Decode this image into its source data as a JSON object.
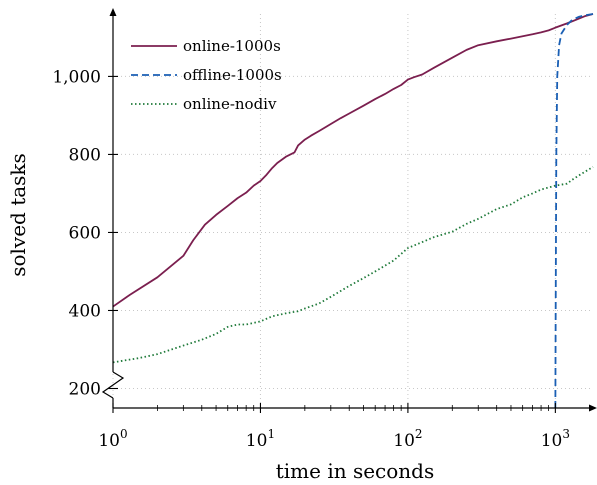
{
  "chart_data": {
    "type": "line",
    "xlabel": "time in seconds",
    "ylabel": "solved tasks",
    "xscale": "log",
    "xlim": [
      1,
      1800
    ],
    "ylim": [
      150,
      1160
    ],
    "y_axis_break": true,
    "grid": true,
    "legend_position": "top-left",
    "xticks": [
      {
        "value": 1,
        "base": "10",
        "exp": "0"
      },
      {
        "value": 10,
        "base": "10",
        "exp": "1"
      },
      {
        "value": 100,
        "base": "10",
        "exp": "2"
      },
      {
        "value": 1000,
        "base": "10",
        "exp": "3"
      }
    ],
    "yticks": [
      {
        "value": 200,
        "label": "200"
      },
      {
        "value": 400,
        "label": "400"
      },
      {
        "value": 600,
        "label": "600"
      },
      {
        "value": 800,
        "label": "800"
      },
      {
        "value": 1000,
        "label": "1,000"
      }
    ],
    "series": [
      {
        "name": "online-1000s",
        "color": "#7b1f4f",
        "dash": "solid",
        "points": [
          [
            1,
            410
          ],
          [
            1.3,
            440
          ],
          [
            2,
            485
          ],
          [
            3,
            540
          ],
          [
            3.5,
            580
          ],
          [
            4.2,
            620
          ],
          [
            5,
            645
          ],
          [
            6,
            668
          ],
          [
            7,
            688
          ],
          [
            8,
            702
          ],
          [
            9,
            720
          ],
          [
            10,
            732
          ],
          [
            11,
            748
          ],
          [
            12,
            765
          ],
          [
            13,
            778
          ],
          [
            15,
            795
          ],
          [
            17,
            805
          ],
          [
            18,
            823
          ],
          [
            20,
            838
          ],
          [
            22,
            848
          ],
          [
            25,
            860
          ],
          [
            30,
            878
          ],
          [
            35,
            893
          ],
          [
            40,
            905
          ],
          [
            50,
            925
          ],
          [
            60,
            942
          ],
          [
            70,
            955
          ],
          [
            80,
            968
          ],
          [
            90,
            978
          ],
          [
            100,
            992
          ],
          [
            110,
            998
          ],
          [
            125,
            1005
          ],
          [
            150,
            1022
          ],
          [
            200,
            1048
          ],
          [
            250,
            1068
          ],
          [
            300,
            1080
          ],
          [
            400,
            1090
          ],
          [
            500,
            1097
          ],
          [
            600,
            1103
          ],
          [
            700,
            1108
          ],
          [
            800,
            1113
          ],
          [
            900,
            1118
          ],
          [
            1000,
            1125
          ],
          [
            1200,
            1136
          ],
          [
            1400,
            1146
          ],
          [
            1600,
            1155
          ],
          [
            1800,
            1160
          ]
        ]
      },
      {
        "name": "offline-1000s",
        "color": "#1a5fb4",
        "dash": "dashed",
        "points": [
          [
            1000,
            150
          ],
          [
            1005,
            400
          ],
          [
            1015,
            800
          ],
          [
            1030,
            1000
          ],
          [
            1060,
            1080
          ],
          [
            1100,
            1110
          ],
          [
            1200,
            1132
          ],
          [
            1300,
            1145
          ],
          [
            1450,
            1153
          ],
          [
            1600,
            1157
          ],
          [
            1800,
            1160
          ]
        ]
      },
      {
        "name": "online-nodiv",
        "color": "#1f7a3a",
        "dash": "dotted",
        "points": [
          [
            1,
            267
          ],
          [
            1.5,
            278
          ],
          [
            2,
            288
          ],
          [
            3,
            310
          ],
          [
            4,
            325
          ],
          [
            5,
            340
          ],
          [
            6,
            358
          ],
          [
            7,
            364
          ],
          [
            8,
            364
          ],
          [
            10,
            372
          ],
          [
            12,
            385
          ],
          [
            15,
            393
          ],
          [
            18,
            398
          ],
          [
            20,
            405
          ],
          [
            25,
            418
          ],
          [
            30,
            435
          ],
          [
            40,
            463
          ],
          [
            50,
            483
          ],
          [
            60,
            500
          ],
          [
            70,
            515
          ],
          [
            80,
            528
          ],
          [
            100,
            560
          ],
          [
            130,
            578
          ],
          [
            150,
            588
          ],
          [
            200,
            602
          ],
          [
            250,
            622
          ],
          [
            300,
            635
          ],
          [
            400,
            660
          ],
          [
            500,
            672
          ],
          [
            600,
            690
          ],
          [
            700,
            700
          ],
          [
            800,
            710
          ],
          [
            1000,
            720
          ],
          [
            1200,
            725
          ],
          [
            1300,
            735
          ],
          [
            1500,
            750
          ],
          [
            1800,
            768
          ]
        ]
      }
    ]
  }
}
